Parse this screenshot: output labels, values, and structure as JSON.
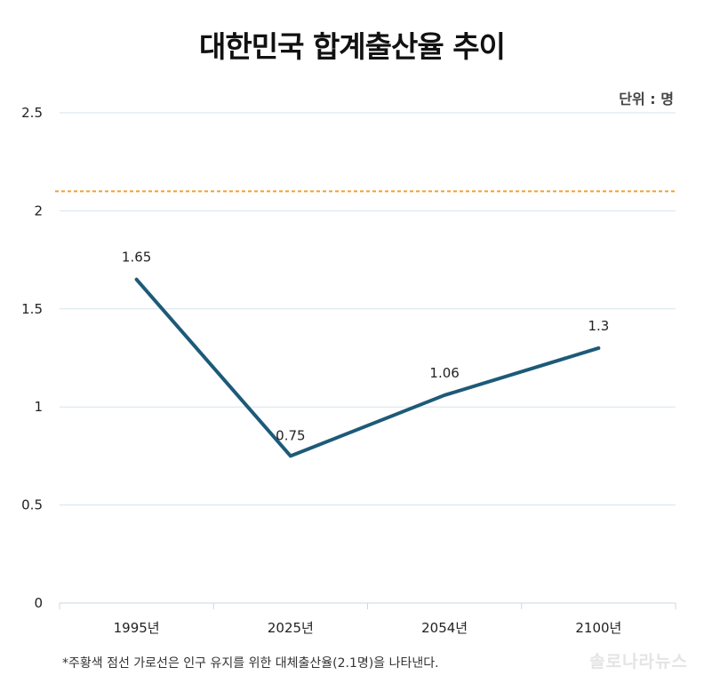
{
  "chart_data": {
    "type": "line",
    "title": "대한민국 합계출산율 추이",
    "unit_label": "단위 : 명",
    "categories": [
      "1995년",
      "2025년",
      "2054년",
      "2100년"
    ],
    "series": [
      {
        "values": [
          1.65,
          0.75,
          1.06,
          1.3
        ],
        "color": "#1d5a78"
      }
    ],
    "data_labels": [
      "1.65",
      "0.75",
      "1.06",
      "1.3"
    ],
    "yticks": [
      0,
      0.5,
      1,
      1.5,
      2,
      2.5
    ],
    "ytick_labels": [
      "0",
      "0.5",
      "1",
      "1.5",
      "2",
      "2.5"
    ],
    "ylim": [
      0,
      2.5
    ],
    "reference_line": {
      "value": 2.1,
      "color": "#f0a030",
      "style": "dashed"
    },
    "grid": true,
    "footnote": "*주황색 점선 가로선은 인구 유지를 위한 대체출산율(2.1명)을 나타낸다."
  },
  "watermark": "솔로나라뉴스",
  "colors": {
    "grid": "#d3e3ee",
    "axis": "#c9d9e5",
    "line": "#1d5a78",
    "reference": "#f0a030"
  }
}
